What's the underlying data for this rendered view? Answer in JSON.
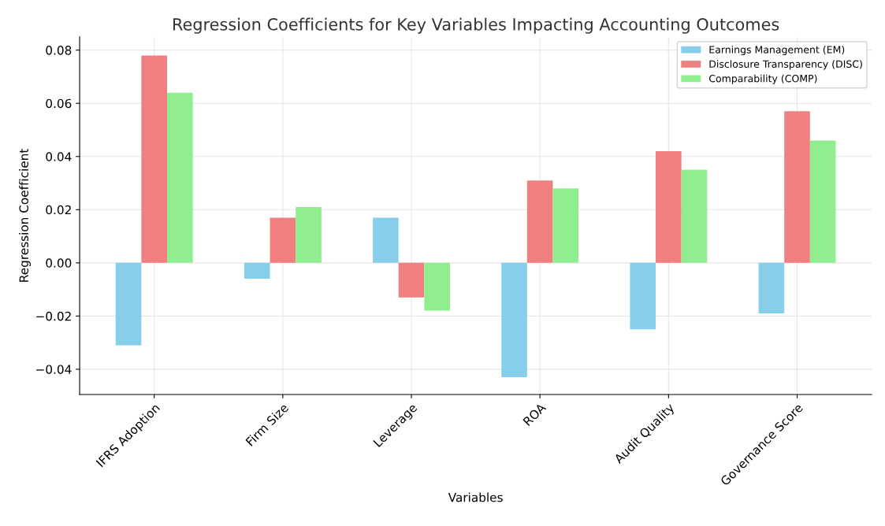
{
  "chart_data": {
    "type": "bar",
    "title": "Regression Coefficients for Key Variables Impacting Accounting Outcomes",
    "xlabel": "Variables",
    "ylabel": "Regression Coefficient",
    "categories": [
      "IFRS Adoption",
      "Firm Size",
      "Leverage",
      "ROA",
      "Audit Quality",
      "Governance Score"
    ],
    "series": [
      {
        "name": "Earnings Management (EM)",
        "color": "#87ceeb",
        "values": [
          -0.031,
          -0.006,
          0.017,
          -0.043,
          -0.025,
          -0.019
        ]
      },
      {
        "name": "Disclosure Transparency (DISC)",
        "color": "#f08080",
        "values": [
          0.078,
          0.017,
          -0.013,
          0.031,
          0.042,
          0.057
        ]
      },
      {
        "name": "Comparability (COMP)",
        "color": "#90ee90",
        "values": [
          0.064,
          0.021,
          -0.018,
          0.028,
          0.035,
          0.046
        ]
      }
    ],
    "ylim": [
      -0.0495,
      0.085
    ],
    "yticks": [
      {
        "value": -0.04,
        "label": "−0.04"
      },
      {
        "value": -0.02,
        "label": "−0.02"
      },
      {
        "value": 0,
        "label": "0.00"
      },
      {
        "value": 0.02,
        "label": "0.02"
      },
      {
        "value": 0.04,
        "label": "0.04"
      },
      {
        "value": 0.06,
        "label": "0.06"
      },
      {
        "value": 0.08,
        "label": "0.08"
      }
    ],
    "grid": true,
    "legend": "top right"
  }
}
